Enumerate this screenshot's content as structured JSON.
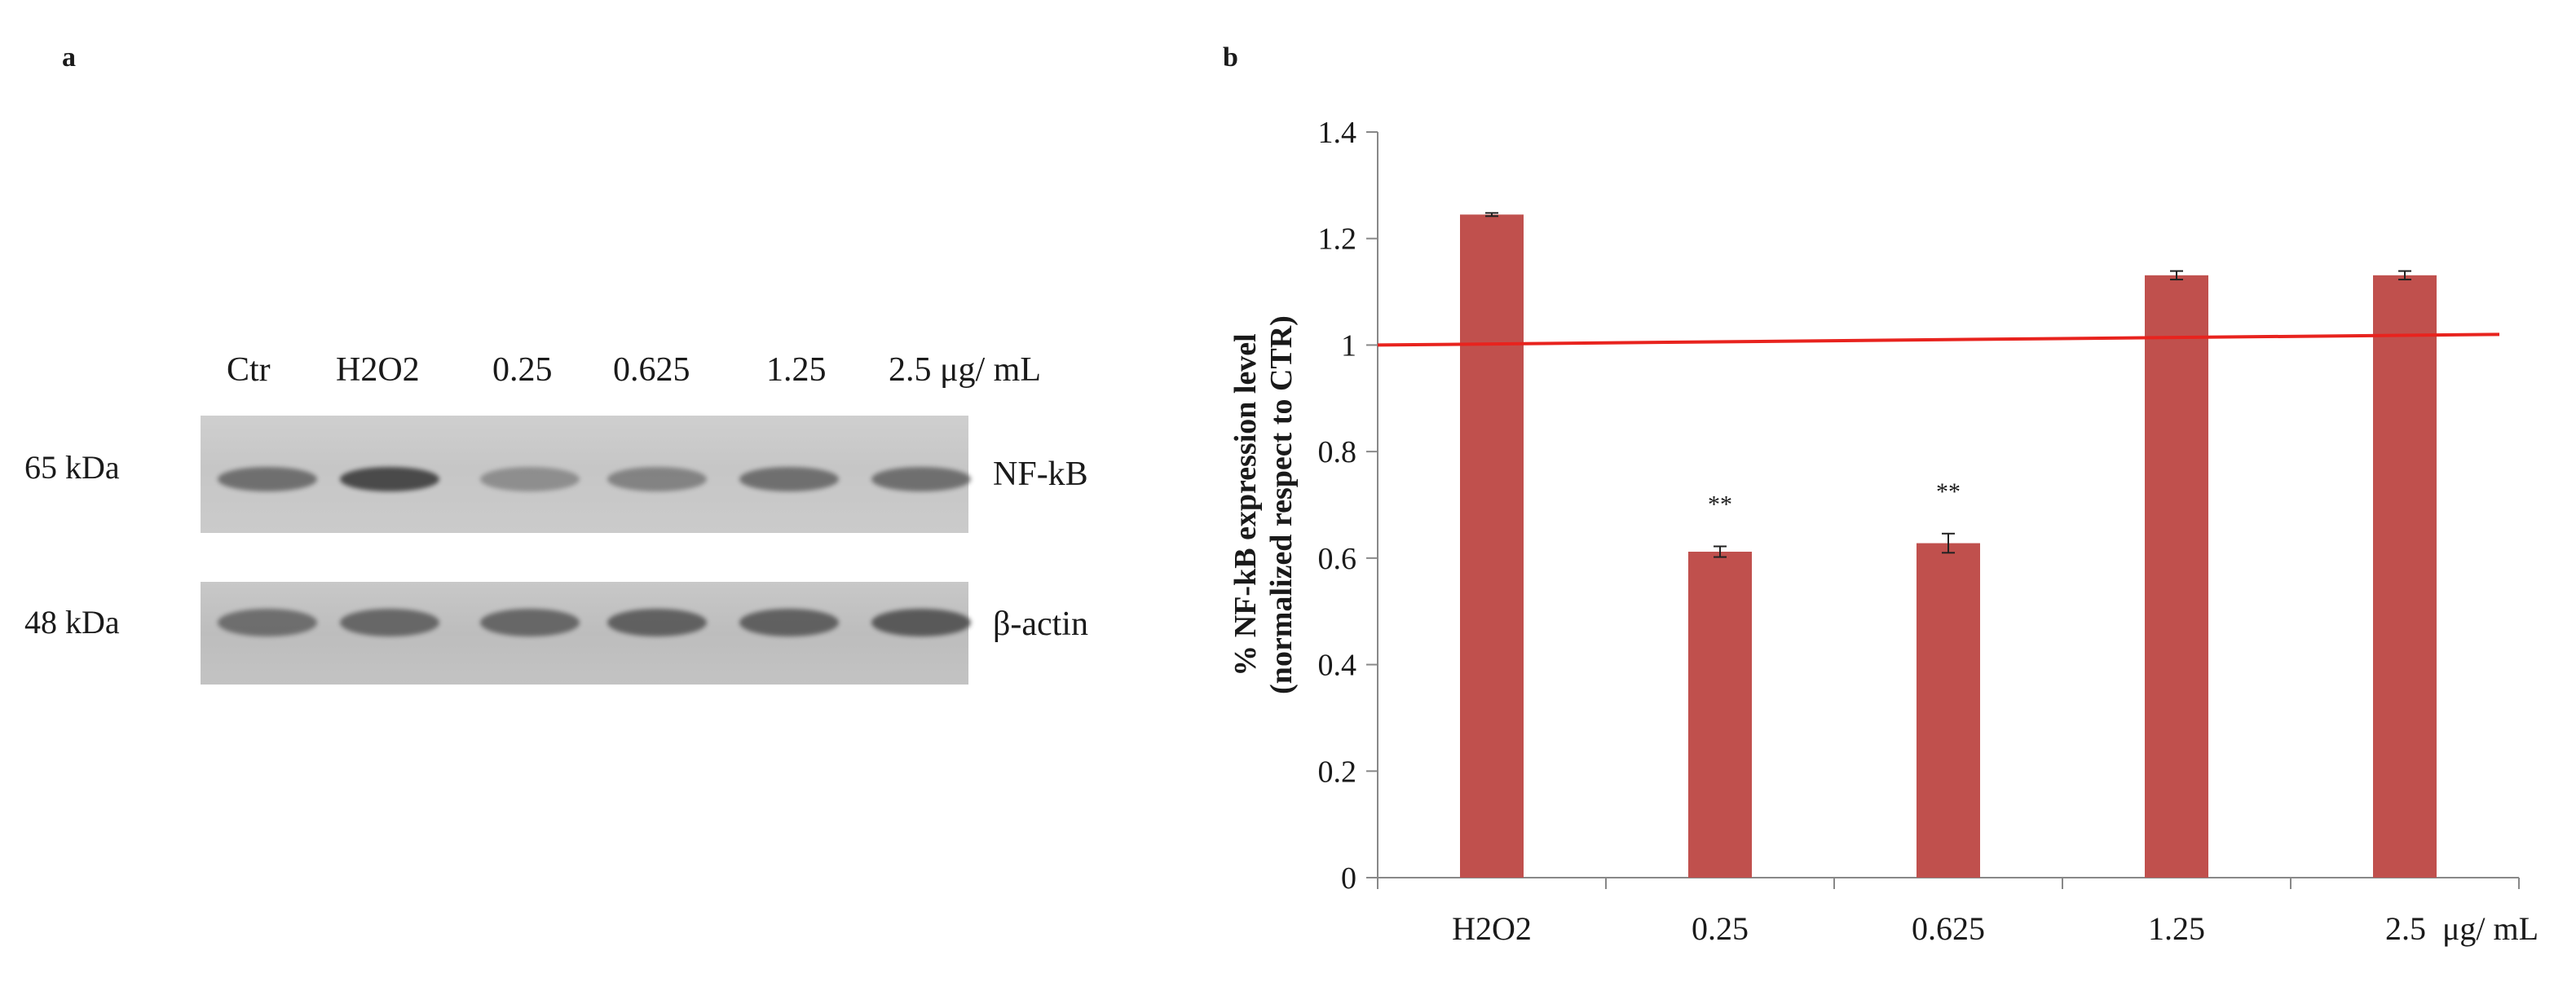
{
  "panel_a": {
    "letter": "a",
    "lanes": [
      "Ctr",
      "H2O2",
      "0.25",
      "0.625",
      "1.25",
      "2.5 μg/ mL"
    ],
    "blots": [
      {
        "marker": "65 kDa",
        "protein": "NF-kB",
        "band_intensity": [
          0.55,
          0.8,
          0.3,
          0.4,
          0.55,
          0.55
        ]
      },
      {
        "marker": "48 kDa",
        "protein": "β-actin",
        "band_intensity": [
          0.55,
          0.6,
          0.6,
          0.65,
          0.65,
          0.7
        ]
      }
    ]
  },
  "panel_b": {
    "letter": "b"
  },
  "chart_data": {
    "type": "bar",
    "categories": [
      "H2O2",
      "0.25",
      "0.625",
      "1.25",
      "2.5  μg/ mL"
    ],
    "values": [
      1.245,
      0.612,
      0.628,
      1.131,
      1.131
    ],
    "errors": [
      0.003,
      0.01,
      0.018,
      0.008,
      0.008
    ],
    "annotations": [
      "",
      "**",
      "**",
      "",
      ""
    ],
    "ylabel_line1": "% NF-kB expression level",
    "ylabel_line2": "(normalized respect to CTR)",
    "xlabel": "",
    "title": "",
    "ylim": [
      0,
      1.4
    ],
    "yticks": [
      0,
      0.2,
      0.4,
      0.6,
      0.8,
      1,
      1.2,
      1.4
    ],
    "ytick_labels": [
      "0",
      "0.2",
      "0.4",
      "0.6",
      "0.8",
      "1",
      "1.2",
      "1.4"
    ],
    "reference_line": {
      "y_start": 1.0,
      "y_end": 1.02,
      "color": "#e8231e"
    },
    "grid": false,
    "bar_color": "#c0504d",
    "axis_color": "#888888"
  }
}
